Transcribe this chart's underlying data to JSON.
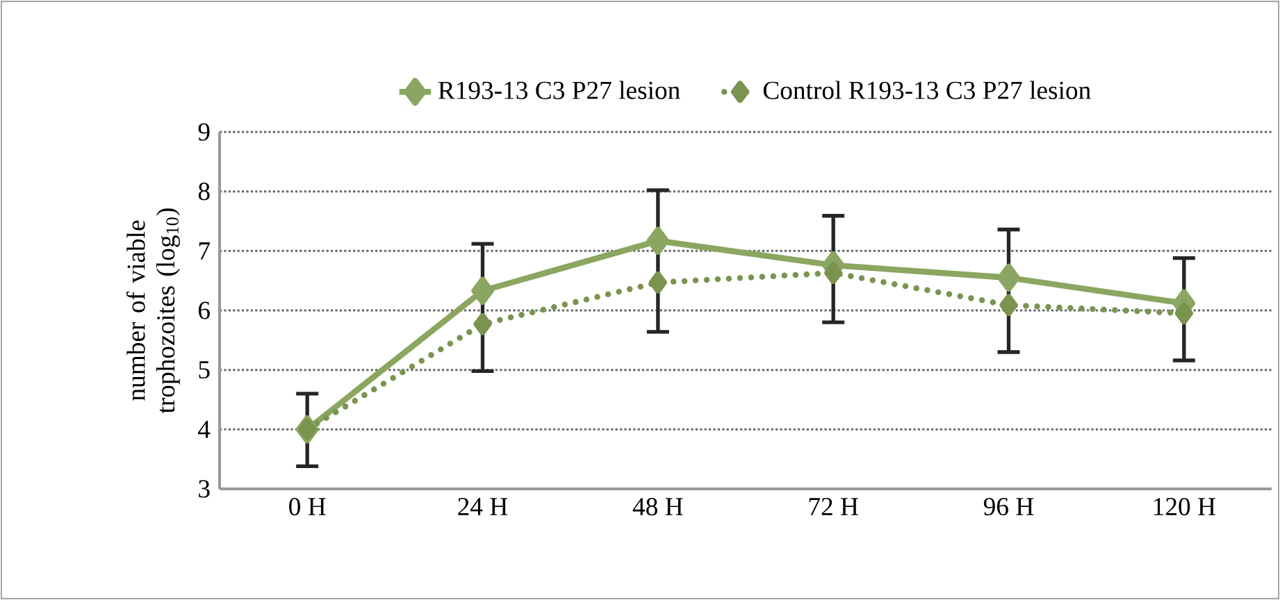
{
  "chart_data": {
    "type": "line",
    "ylabel": "number of viable trophozoites (log$_{10}$)",
    "categories": [
      "0 H",
      "24 H",
      "48 H",
      "72 H",
      "96 H",
      "120 H"
    ],
    "series": [
      {
        "name": "R193-13 C3 P27 lesion",
        "color": "#8aa660",
        "line_style": "solid",
        "values": [
          4.0,
          6.33,
          7.17,
          6.76,
          6.55,
          6.12
        ],
        "errors": [
          [
            3.38,
            4.6
          ],
          [
            4.98,
            7.12
          ],
          [
            5.64,
            8.02
          ],
          [
            5.8,
            7.59
          ],
          [
            5.3,
            7.36
          ],
          [
            5.16,
            6.88
          ]
        ]
      },
      {
        "name": "Control R193-13 C3 P27 lesion",
        "color": "#7a9450",
        "line_style": "dotted",
        "values": [
          4.0,
          5.77,
          6.47,
          6.63,
          6.09,
          5.95
        ]
      }
    ],
    "ylim": [
      3,
      9
    ],
    "yticks": [
      3,
      4,
      5,
      6,
      7,
      8,
      9
    ],
    "grid": "y",
    "legend": "top",
    "marker": "diamond"
  }
}
